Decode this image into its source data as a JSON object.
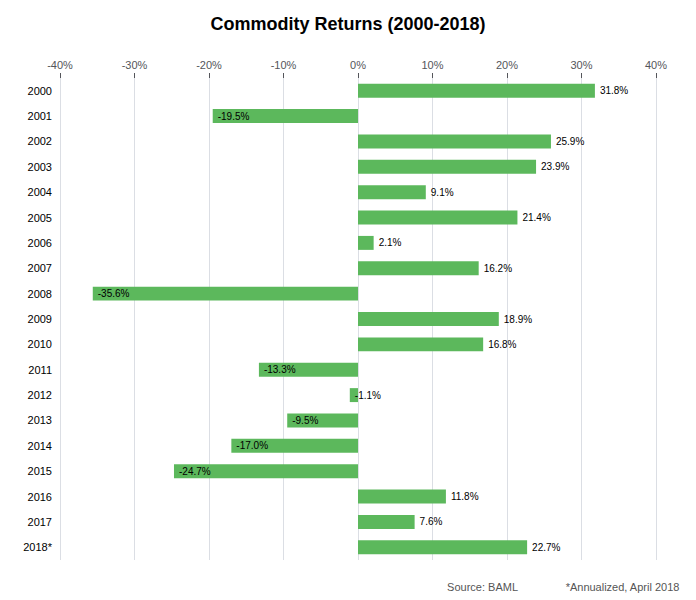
{
  "chart_data": {
    "type": "bar",
    "orientation": "horizontal",
    "title": "Commodity Returns (2000-2018)",
    "categories": [
      "2000",
      "2001",
      "2002",
      "2003",
      "2004",
      "2005",
      "2006",
      "2007",
      "2008",
      "2009",
      "2010",
      "2011",
      "2012",
      "2013",
      "2014",
      "2015",
      "2016",
      "2017",
      "2018*"
    ],
    "values": [
      31.8,
      -19.5,
      25.9,
      23.9,
      9.1,
      21.4,
      2.1,
      16.2,
      -35.6,
      18.9,
      16.8,
      -13.3,
      -1.1,
      -9.5,
      -17.0,
      -24.7,
      11.8,
      7.6,
      22.7
    ],
    "value_labels": [
      "31.8%",
      "-19.5%",
      "25.9%",
      "23.9%",
      "9.1%",
      "21.4%",
      "2.1%",
      "16.2%",
      "-35.6%",
      "18.9%",
      "16.8%",
      "-13.3%",
      "-1.1%",
      "-9.5%",
      "-17.0%",
      "-24.7%",
      "11.8%",
      "7.6%",
      "22.7%"
    ],
    "data_labels": true,
    "color": "#5cb85c",
    "xlim": [
      -40,
      40
    ],
    "xticks": [
      {
        "value": -40,
        "label": "-40%"
      },
      {
        "value": -30,
        "label": "-30%"
      },
      {
        "value": -20,
        "label": "-20%"
      },
      {
        "value": -10,
        "label": "-10%"
      },
      {
        "value": 0,
        "label": "0%"
      },
      {
        "value": 10,
        "label": "10%"
      },
      {
        "value": 20,
        "label": "20%"
      },
      {
        "value": 30,
        "label": "30%"
      },
      {
        "value": 40,
        "label": "40%"
      }
    ],
    "grid": true,
    "annotations": [
      "Source: BAML",
      "*Annualized, April 2018"
    ]
  }
}
